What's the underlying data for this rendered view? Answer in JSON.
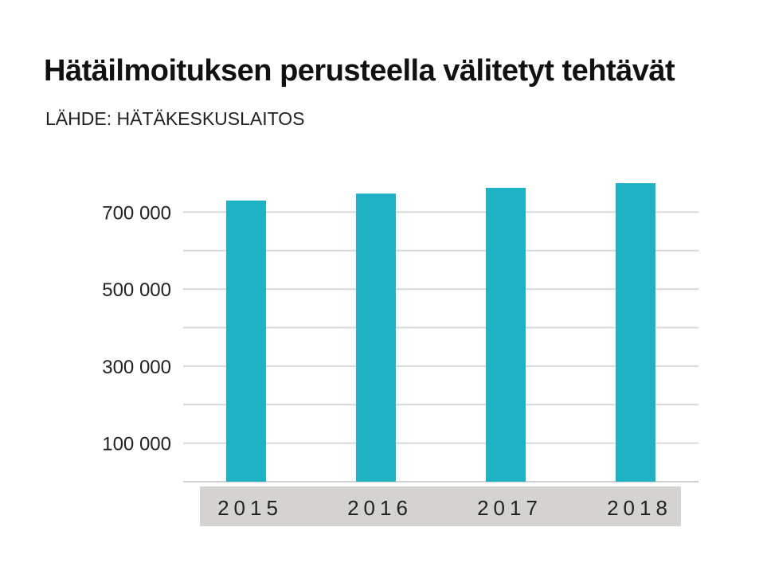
{
  "chart_data": {
    "type": "bar",
    "title": "Hätäilmoituksen perusteella välitetyt tehtävät",
    "subtitle": "LÄHDE: HÄTÄKESKUSLAITOS",
    "categories": [
      "2015",
      "2016",
      "2017",
      "2018"
    ],
    "values": [
      730000,
      748000,
      763000,
      775000
    ],
    "yticks": [
      100000,
      300000,
      500000,
      700000
    ],
    "ytick_labels": [
      "100 000",
      "300 000",
      "500 000",
      "700 000"
    ],
    "ylim": [
      0,
      800000
    ],
    "grid": true,
    "colors": {
      "bar": "#1fb2c4",
      "grid": "#d8d8d8",
      "axis_band": "#d4d3cf",
      "text": "#222222"
    }
  }
}
